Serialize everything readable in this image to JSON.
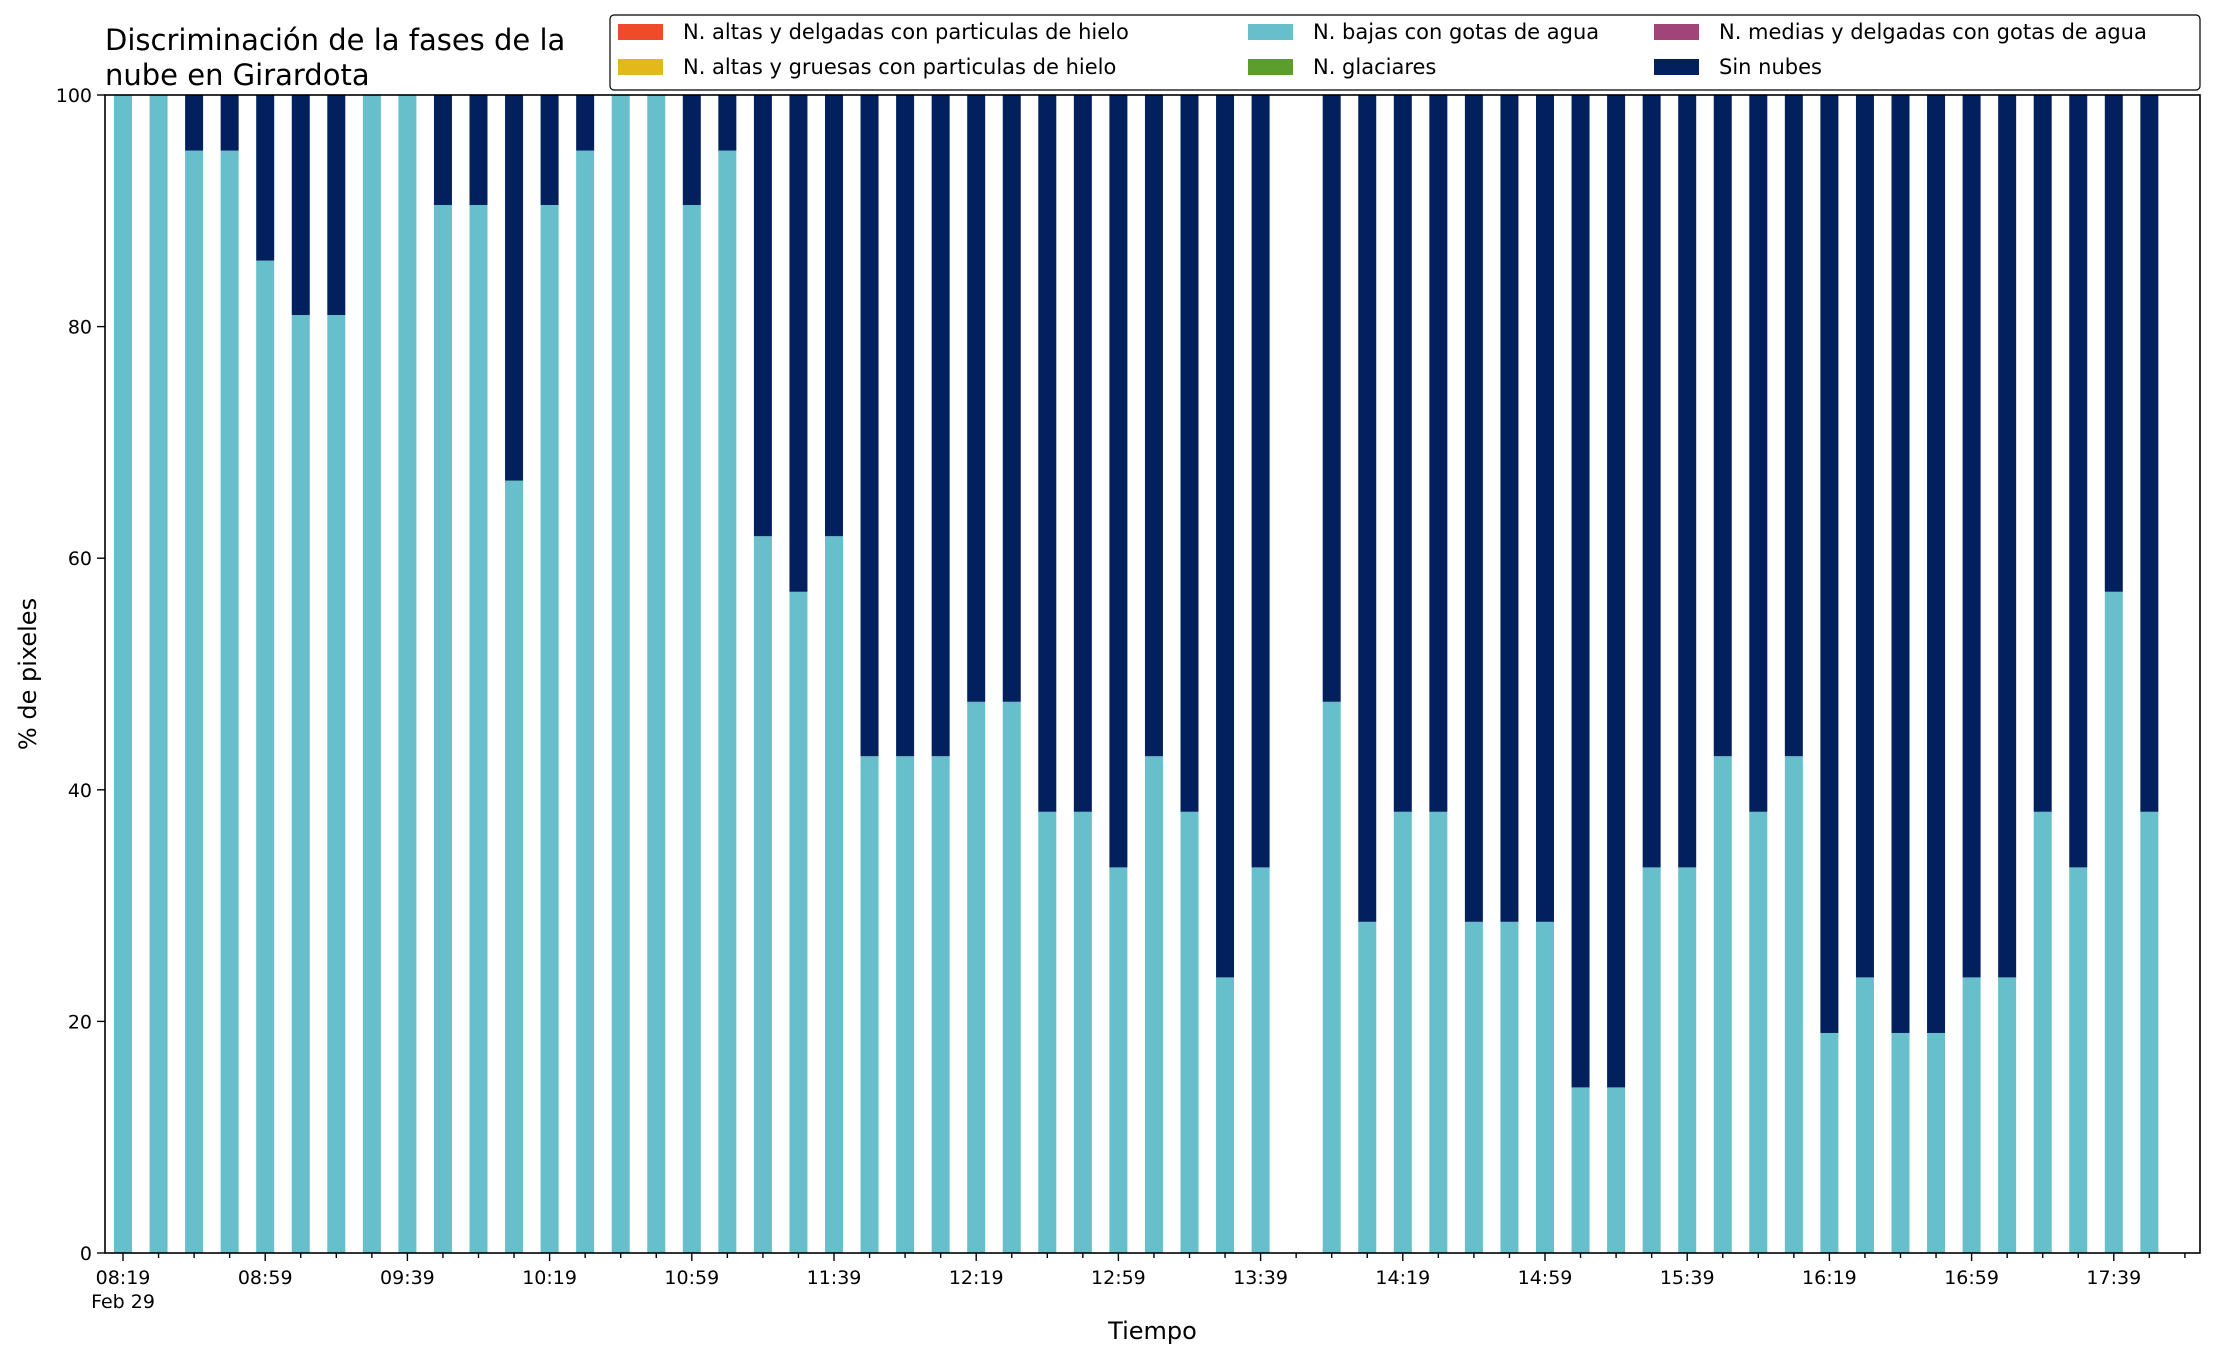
{
  "chart_data": {
    "type": "bar",
    "stacked": true,
    "title_lines": [
      "Discriminación de la fases de la",
      "nube en Girardota"
    ],
    "xlabel": "Tiempo",
    "ylabel": "% de pixeles",
    "ylim": [
      0,
      100
    ],
    "yticks": [
      0,
      20,
      40,
      60,
      80,
      100
    ],
    "grid": false,
    "legend_position": "top-right",
    "x_date_label": "Feb 29",
    "x_ticks": [
      "08:19",
      "08:59",
      "09:39",
      "10:19",
      "10:59",
      "11:39",
      "12:19",
      "12:59",
      "13:39",
      "14:19",
      "14:59",
      "15:39",
      "16:19",
      "16:59",
      "17:39"
    ],
    "categories": [
      "08:19",
      "08:29",
      "08:39",
      "08:49",
      "08:59",
      "09:09",
      "09:19",
      "09:29",
      "09:39",
      "09:49",
      "09:59",
      "10:09",
      "10:19",
      "10:29",
      "10:39",
      "10:49",
      "10:59",
      "11:09",
      "11:19",
      "11:29",
      "11:39",
      "11:49",
      "11:59",
      "12:09",
      "12:19",
      "12:29",
      "12:39",
      "12:49",
      "12:59",
      "13:09",
      "13:19",
      "13:29",
      "13:39",
      "13:49",
      "13:59",
      "14:09",
      "14:19",
      "14:29",
      "14:39",
      "14:49",
      "14:59",
      "15:09",
      "15:19",
      "15:29",
      "15:39",
      "15:49",
      "15:59",
      "16:09",
      "16:19",
      "16:29",
      "16:39",
      "16:49",
      "16:59",
      "17:09",
      "17:19",
      "17:29",
      "17:39",
      "17:49"
    ],
    "series": [
      {
        "name": "N. altas y delgadas con particulas de hielo",
        "color": "#ee4b2b",
        "values": [
          0,
          0,
          0,
          0,
          0,
          0,
          0,
          0,
          0,
          0,
          0,
          0,
          0,
          0,
          0,
          0,
          0,
          0,
          0,
          0,
          0,
          0,
          0,
          0,
          0,
          0,
          0,
          0,
          0,
          0,
          0,
          0,
          0,
          null,
          0,
          0,
          0,
          0,
          0,
          0,
          0,
          0,
          0,
          0,
          0,
          0,
          0,
          0,
          0,
          0,
          0,
          0,
          0,
          0,
          0,
          0,
          0,
          0
        ]
      },
      {
        "name": "N. altas y gruesas con particulas de hielo",
        "color": "#e3b81c",
        "values": [
          0,
          0,
          0,
          0,
          0,
          0,
          0,
          0,
          0,
          0,
          0,
          0,
          0,
          0,
          0,
          0,
          0,
          0,
          0,
          0,
          0,
          0,
          0,
          0,
          0,
          0,
          0,
          0,
          0,
          0,
          0,
          0,
          0,
          null,
          0,
          0,
          0,
          0,
          0,
          0,
          0,
          0,
          0,
          0,
          0,
          0,
          0,
          0,
          0,
          0,
          0,
          0,
          0,
          0,
          0,
          0,
          0,
          0
        ]
      },
      {
        "name": "N. bajas con gotas de agua",
        "color": "#66bfca",
        "values": [
          100,
          100,
          95.2,
          95.2,
          85.7,
          81,
          81,
          100,
          100,
          90.5,
          90.5,
          66.7,
          90.5,
          95.2,
          100,
          100,
          90.5,
          95.2,
          61.9,
          57.1,
          61.9,
          42.9,
          42.9,
          42.9,
          47.6,
          47.6,
          38.1,
          38.1,
          33.3,
          42.9,
          38.1,
          23.8,
          33.3,
          null,
          47.6,
          28.6,
          38.1,
          38.1,
          28.6,
          28.6,
          28.6,
          14.3,
          14.3,
          33.3,
          33.3,
          42.9,
          38.1,
          42.9,
          19,
          23.8,
          19,
          19,
          23.8,
          23.8,
          38.1,
          33.3,
          57.1,
          38.1
        ]
      },
      {
        "name": "N. glaciares",
        "color": "#5c9e2e",
        "values": [
          0,
          0,
          0,
          0,
          0,
          0,
          0,
          0,
          0,
          0,
          0,
          0,
          0,
          0,
          0,
          0,
          0,
          0,
          0,
          0,
          0,
          0,
          0,
          0,
          0,
          0,
          0,
          0,
          0,
          0,
          0,
          0,
          0,
          null,
          0,
          0,
          0,
          0,
          0,
          0,
          0,
          0,
          0,
          0,
          0,
          0,
          0,
          0,
          0,
          0,
          0,
          0,
          0,
          0,
          0,
          0,
          0,
          0
        ]
      },
      {
        "name": "N. medias y delgadas con gotas de agua",
        "color": "#a0447a",
        "values": [
          0,
          0,
          0,
          0,
          0,
          0,
          0,
          0,
          0,
          0,
          0,
          0,
          0,
          0,
          0,
          0,
          0,
          0,
          0,
          0,
          0,
          0,
          0,
          0,
          0,
          0,
          0,
          0,
          0,
          0,
          0,
          0,
          0,
          null,
          0,
          0,
          0,
          0,
          0,
          0,
          0,
          0,
          0,
          0,
          0,
          0,
          0,
          0,
          0,
          0,
          0,
          0,
          0,
          0,
          0,
          0,
          0,
          0
        ]
      },
      {
        "name": "Sin nubes",
        "color": "#02205e",
        "values": [
          0,
          0,
          4.8,
          4.8,
          14.3,
          19,
          19,
          0,
          0,
          9.5,
          9.5,
          33.3,
          9.5,
          4.8,
          0,
          0,
          9.5,
          4.8,
          38.1,
          42.9,
          38.1,
          57.1,
          57.1,
          57.1,
          52.4,
          52.4,
          61.9,
          61.9,
          66.7,
          57.1,
          61.9,
          76.2,
          66.7,
          null,
          52.4,
          71.4,
          61.9,
          61.9,
          71.4,
          71.4,
          71.4,
          85.7,
          85.7,
          66.7,
          66.7,
          57.1,
          61.9,
          57.1,
          81,
          76.2,
          81,
          81,
          76.2,
          76.2,
          61.9,
          66.7,
          42.9,
          61.9
        ]
      }
    ],
    "legend_order": [
      "N. altas y delgadas con particulas de hielo",
      "N. altas y gruesas con particulas de hielo",
      "N. bajas con gotas de agua",
      "N. glaciares",
      "N. medias y delgadas con gotas de agua",
      "Sin nubes"
    ]
  }
}
